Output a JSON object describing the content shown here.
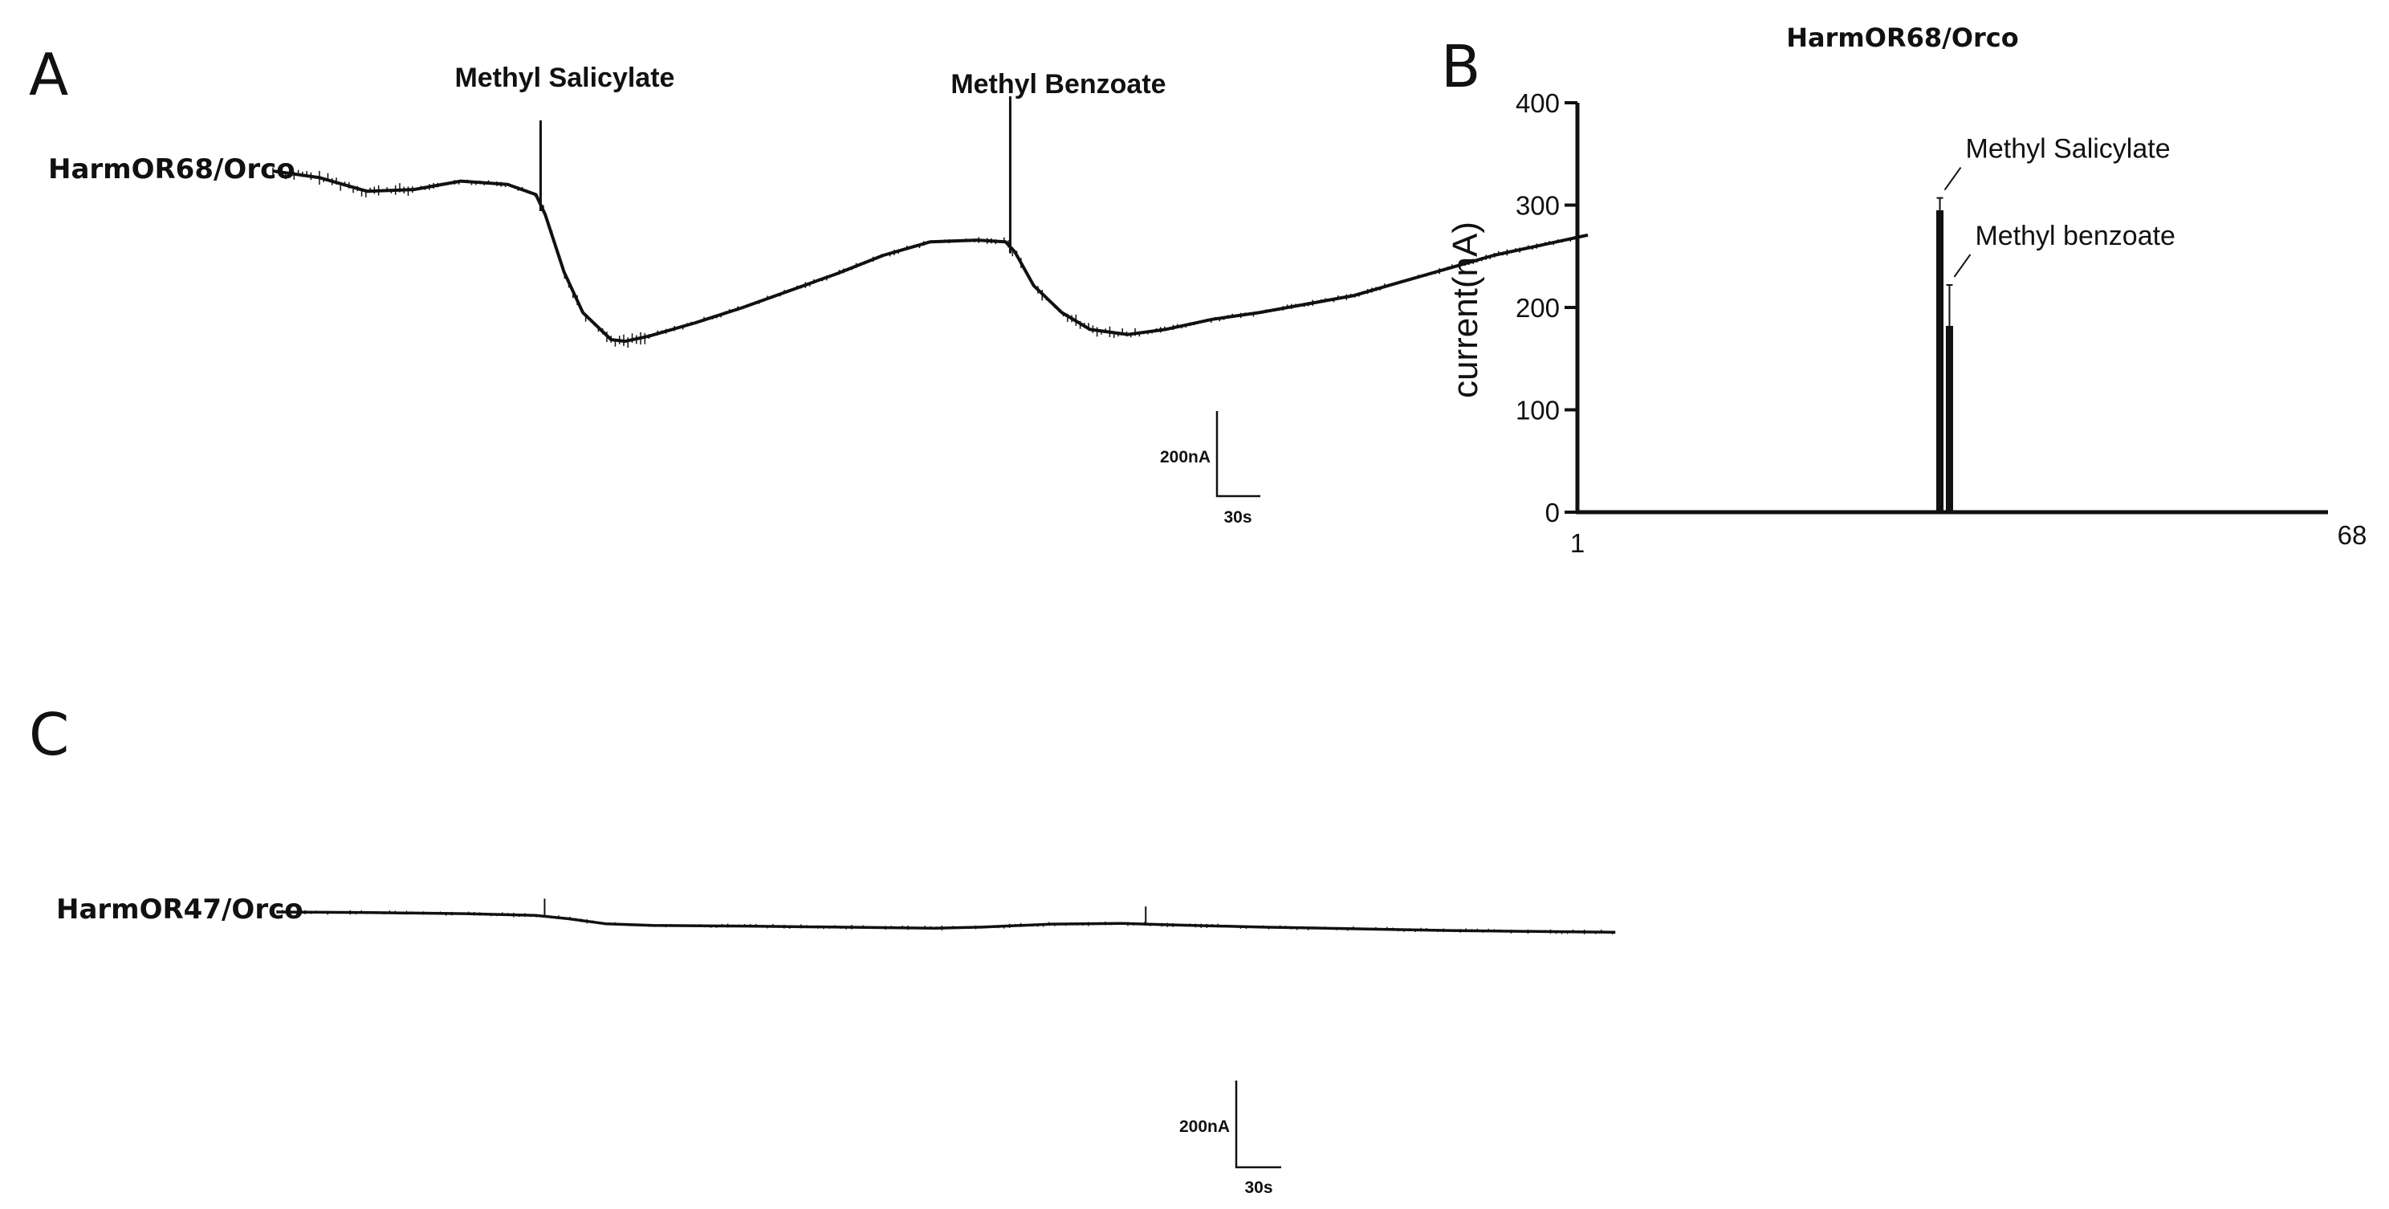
{
  "panels": {
    "A": "A",
    "B": "B",
    "C": "C"
  },
  "traceA": {
    "label": "HarmOR68/Orco",
    "stimuli": [
      "Methyl Salicylate",
      "Methyl Benzoate"
    ],
    "scalebar": {
      "y": "200nA",
      "x": "30s"
    }
  },
  "traceC": {
    "label": "HarmOR47/Orco",
    "scalebar": {
      "y": "200nA",
      "x": "30s"
    }
  },
  "chart_data": [
    {
      "type": "line",
      "panel": "A",
      "series_name": "HarmOR68/Orco",
      "x_unit": "s",
      "y_unit": "nA",
      "x": [
        0,
        10,
        20,
        30,
        40,
        50,
        56,
        58,
        62,
        66,
        72,
        75,
        80,
        90,
        100,
        110,
        120,
        130,
        140,
        150,
        156,
        158,
        162,
        168,
        174,
        182,
        190,
        200,
        210,
        220,
        230,
        240,
        250,
        260,
        270,
        280
      ],
      "y": [
        0,
        -20,
        -60,
        -55,
        -30,
        -40,
        -70,
        -130,
        -300,
        -420,
        -500,
        -505,
        -490,
        -450,
        -405,
        -355,
        -305,
        -250,
        -210,
        -205,
        -210,
        -240,
        -340,
        -420,
        -470,
        -485,
        -470,
        -440,
        -420,
        -395,
        -370,
        -330,
        -290,
        -250,
        -220,
        -190
      ],
      "stimuli": [
        {
          "name": "Methyl Salicylate",
          "t": 57
        },
        {
          "name": "Methyl Benzoate",
          "t": 157
        }
      ]
    },
    {
      "type": "bar",
      "panel": "B",
      "title": "HarmOR68/Orco",
      "ylabel": "current(nA)",
      "x_ticks": [
        "1",
        "68"
      ],
      "xlim": [
        1,
        68
      ],
      "ylim": [
        0,
        400
      ],
      "y_ticks": [
        0,
        100,
        200,
        300,
        400
      ],
      "bars": [
        {
          "label": "Methyl Salicylate",
          "x": 34,
          "value": 295,
          "error": 12
        },
        {
          "label": "Methyl benzoate",
          "x": 35,
          "value": 182,
          "error": 40
        }
      ]
    },
    {
      "type": "line",
      "panel": "C",
      "series_name": "HarmOR47/Orco",
      "x_unit": "s",
      "y_unit": "nA",
      "x": [
        0,
        20,
        40,
        55,
        62,
        70,
        80,
        100,
        120,
        140,
        150,
        165,
        180,
        190,
        210,
        230,
        250,
        270,
        285
      ],
      "y": [
        0,
        -2,
        -5,
        -10,
        -20,
        -35,
        -40,
        -42,
        -45,
        -48,
        -45,
        -36,
        -34,
        -38,
        -45,
        -50,
        -55,
        -58,
        -60
      ],
      "spikes_t": [
        57,
        185
      ]
    }
  ]
}
